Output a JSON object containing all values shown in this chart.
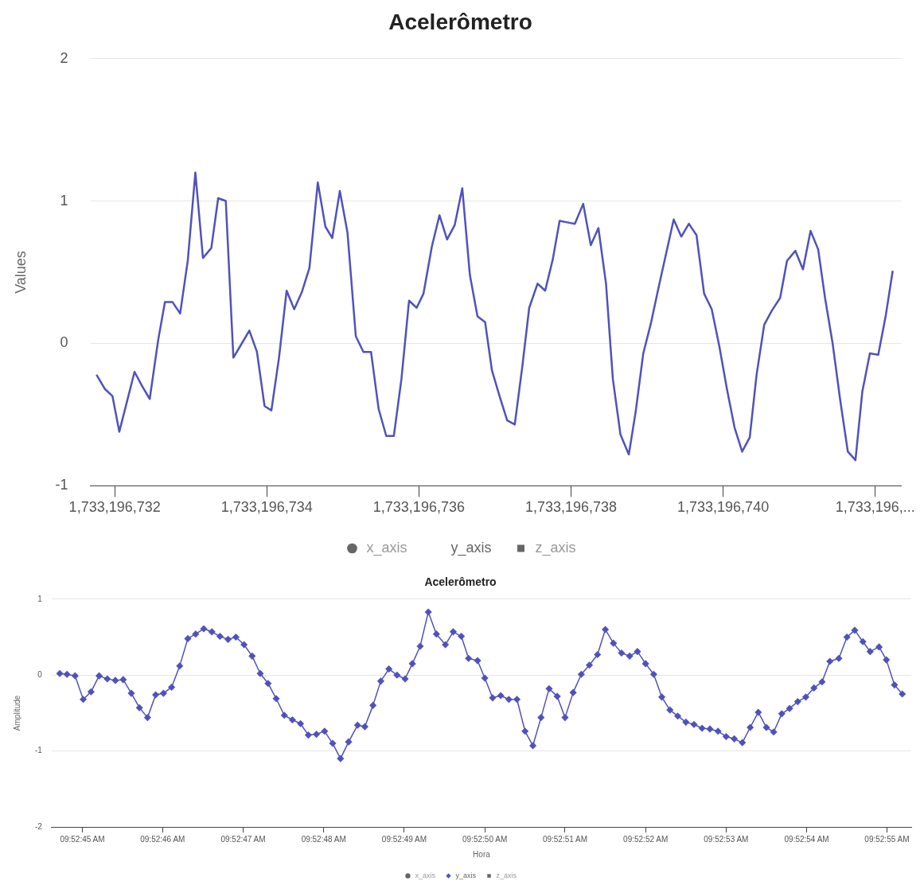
{
  "chart_data": [
    {
      "type": "line",
      "title": "Acelerômetro",
      "ylabel": "Values",
      "xlim": [
        1733196731.68,
        1733196742.34
      ],
      "xticks": [
        {
          "value": 1733196732,
          "label": "1,733,196,732"
        },
        {
          "value": 1733196734,
          "label": "1,733,196,734"
        },
        {
          "value": 1733196736,
          "label": "1,733,196,736"
        },
        {
          "value": 1733196738,
          "label": "1,733,196,738"
        },
        {
          "value": 1733196740,
          "label": "1,733,196,740"
        },
        {
          "value": 1733196742,
          "label": "1,733,196,..."
        }
      ],
      "ylim": [
        -1,
        2
      ],
      "yticks": [
        -1,
        0,
        1,
        2
      ],
      "grid": "y",
      "legend": "bottom",
      "marker": "none",
      "x": [
        1733196731.76,
        1733196731.87,
        1733196731.97,
        1733196732.06,
        1733196732.16,
        1733196732.26,
        1733196732.36,
        1733196732.46,
        1733196732.57,
        1733196732.66,
        1733196732.76,
        1733196732.86,
        1733196732.96,
        1733196733.06,
        1733196733.16,
        1733196733.27,
        1733196733.36,
        1733196733.46,
        1733196733.56,
        1733196733.66,
        1733196733.77,
        1733196733.87,
        1733196733.97,
        1733196734.06,
        1733196734.16,
        1733196734.26,
        1733196734.36,
        1733196734.46,
        1733196734.56,
        1733196734.67,
        1733196734.77,
        1733196734.86,
        1733196734.96,
        1733196735.06,
        1733196735.17,
        1733196735.27,
        1733196735.37,
        1733196735.47,
        1733196735.57,
        1733196735.67,
        1733196735.77,
        1733196735.87,
        1733196735.97,
        1733196736.06,
        1733196736.17,
        1733196736.27,
        1733196736.37,
        1733196736.47,
        1733196736.57,
        1733196736.67,
        1733196736.77,
        1733196736.87,
        1733196736.96,
        1733196737.06,
        1733196737.16,
        1733196737.26,
        1733196737.36,
        1733196737.45,
        1733196737.56,
        1733196737.66,
        1733196737.76,
        1733196737.85,
        1733196737.95,
        1733196738.05,
        1733196738.16,
        1733196738.26,
        1733196738.36,
        1733196738.46,
        1733196738.55,
        1733196738.65,
        1733196738.76,
        1733196738.85,
        1733196738.95,
        1733196739.05,
        1733196739.15,
        1733196739.25,
        1733196739.35,
        1733196739.45,
        1733196739.55,
        1733196739.65,
        1733196739.75,
        1733196739.85,
        1733196739.95,
        1733196740.05,
        1733196740.15,
        1733196740.25,
        1733196740.35,
        1733196740.44,
        1733196740.54,
        1733196740.64,
        1733196740.75,
        1733196740.84,
        1733196740.95,
        1733196741.05,
        1733196741.15,
        1733196741.25,
        1733196741.34,
        1733196741.44,
        1733196741.54,
        1733196741.64,
        1733196741.74,
        1733196741.83,
        1733196741.93,
        1733196742.04,
        1733196742.14,
        1733196742.23
      ],
      "series": [
        {
          "name": "x_axis",
          "color": "#666666",
          "marker": "circle",
          "values": [
            null,
            null,
            null,
            null,
            null,
            null,
            null,
            null,
            null,
            null,
            null,
            null,
            null,
            null,
            null,
            null,
            null,
            null,
            null,
            null,
            null,
            null,
            null,
            null,
            null,
            null,
            null,
            null,
            null,
            null,
            null,
            null,
            null,
            null,
            null,
            null,
            null,
            null,
            null,
            null,
            null,
            null,
            null,
            null,
            null,
            null,
            null,
            null,
            null,
            null,
            null,
            null,
            null,
            null,
            null,
            null,
            null,
            null,
            null,
            null,
            null,
            null,
            null,
            null,
            null,
            null,
            null,
            null,
            null,
            null,
            null,
            null,
            null,
            null,
            null,
            null,
            null,
            null,
            null,
            null,
            null,
            null,
            null,
            null,
            null,
            null,
            null,
            null,
            null,
            null,
            null,
            null,
            null,
            null,
            null,
            null,
            null,
            null,
            null,
            null,
            null,
            null,
            null,
            null,
            null,
            null
          ]
        },
        {
          "name": "y_axis",
          "color": "#5151bd",
          "values": [
            -0.22,
            -0.32,
            -0.37,
            -0.62,
            -0.41,
            -0.2,
            -0.3,
            -0.39,
            0.02,
            0.29,
            0.29,
            0.21,
            0.58,
            1.2,
            0.6,
            0.67,
            1.02,
            1.0,
            -0.1,
            -0.01,
            0.09,
            -0.06,
            -0.44,
            -0.47,
            -0.1,
            0.37,
            0.24,
            0.36,
            0.53,
            1.13,
            0.82,
            0.74,
            1.07,
            0.78,
            0.05,
            -0.06,
            -0.06,
            -0.46,
            -0.65,
            -0.65,
            -0.25,
            0.3,
            0.25,
            0.35,
            0.68,
            0.9,
            0.73,
            0.83,
            1.09,
            0.48,
            0.19,
            0.15,
            -0.19,
            -0.37,
            -0.54,
            -0.57,
            -0.16,
            0.25,
            0.42,
            0.37,
            0.59,
            0.86,
            0.85,
            0.84,
            0.98,
            0.69,
            0.81,
            0.42,
            -0.25,
            -0.64,
            -0.78,
            -0.48,
            -0.07,
            0.14,
            0.39,
            0.63,
            0.87,
            0.75,
            0.84,
            0.76,
            0.35,
            0.24,
            -0.02,
            -0.32,
            -0.59,
            -0.76,
            -0.66,
            -0.22,
            0.13,
            0.23,
            0.32,
            0.58,
            0.65,
            0.52,
            0.79,
            0.66,
            0.32,
            0.0,
            -0.4,
            -0.76,
            -0.82,
            -0.34,
            -0.07,
            -0.08,
            0.2,
            0.51
          ]
        },
        {
          "name": "z_axis",
          "color": "#666666",
          "marker": "square",
          "values": [
            null,
            null,
            null,
            null,
            null,
            null,
            null,
            null,
            null,
            null,
            null,
            null,
            null,
            null,
            null,
            null,
            null,
            null,
            null,
            null,
            null,
            null,
            null,
            null,
            null,
            null,
            null,
            null,
            null,
            null,
            null,
            null,
            null,
            null,
            null,
            null,
            null,
            null,
            null,
            null,
            null,
            null,
            null,
            null,
            null,
            null,
            null,
            null,
            null,
            null,
            null,
            null,
            null,
            null,
            null,
            null,
            null,
            null,
            null,
            null,
            null,
            null,
            null,
            null,
            null,
            null,
            null,
            null,
            null,
            null,
            null,
            null,
            null,
            null,
            null,
            null,
            null,
            null,
            null,
            null,
            null,
            null,
            null,
            null,
            null,
            null,
            null,
            null,
            null,
            null,
            null,
            null,
            null,
            null,
            null,
            null,
            null,
            null,
            null,
            null,
            null,
            null,
            null,
            null,
            null,
            null
          ]
        }
      ]
    },
    {
      "type": "line",
      "title": "Acelerômetro",
      "xlabel": "Hora",
      "ylabel": "Amplitude",
      "xlim": [
        9.879061,
        9.882028
      ],
      "xticks": [
        {
          "value": 9.879167,
          "label": "09:52:45 AM"
        },
        {
          "value": 9.879444,
          "label": "09:52:46 AM"
        },
        {
          "value": 9.879722,
          "label": "09:52:47 AM"
        },
        {
          "value": 9.88,
          "label": "09:52:48 AM"
        },
        {
          "value": 9.880278,
          "label": "09:52:49 AM"
        },
        {
          "value": 9.880556,
          "label": "09:52:50 AM"
        },
        {
          "value": 9.880833,
          "label": "09:52:51 AM"
        },
        {
          "value": 9.881111,
          "label": "09:52:52 AM"
        },
        {
          "value": 9.881389,
          "label": "09:52:53 AM"
        },
        {
          "value": 9.881667,
          "label": "09:52:54 AM"
        },
        {
          "value": 9.881944,
          "label": "09:52:55 AM"
        }
      ],
      "ylim": [
        -2,
        1
      ],
      "yticks": [
        -2,
        -1,
        0,
        1
      ],
      "grid": "y",
      "legend": "bottom",
      "marker": "diamond",
      "x": [
        9.879089,
        9.879114,
        9.879142,
        9.87917,
        9.879197,
        9.879225,
        9.879253,
        9.879281,
        9.879308,
        9.879336,
        9.879364,
        9.879392,
        9.87942,
        9.879447,
        9.879475,
        9.879503,
        9.879531,
        9.879558,
        9.879586,
        9.879614,
        9.879642,
        9.87967,
        9.879697,
        9.879725,
        9.879753,
        9.879781,
        9.879808,
        9.879836,
        9.879864,
        9.879892,
        9.87992,
        9.879947,
        9.879975,
        9.880003,
        9.880031,
        9.880058,
        9.880086,
        9.880117,
        9.880142,
        9.88017,
        9.880197,
        9.880225,
        9.880253,
        9.880281,
        9.880306,
        9.880333,
        9.880361,
        9.880389,
        9.88042,
        9.880447,
        9.880475,
        9.8805,
        9.880531,
        9.880556,
        9.880583,
        9.880611,
        9.880639,
        9.880667,
        9.880695,
        9.880722,
        9.88075,
        9.880778,
        9.880806,
        9.880833,
        9.880861,
        9.880889,
        9.880917,
        9.880945,
        9.880972,
        9.881,
        9.881028,
        9.881056,
        9.881083,
        9.881111,
        9.881139,
        9.881167,
        9.881195,
        9.881222,
        9.88125,
        9.881278,
        9.881306,
        9.881333,
        9.881361,
        9.881389,
        9.881417,
        9.881445,
        9.881472,
        9.8815,
        9.881528,
        9.881553,
        9.881581,
        9.881608,
        9.881636,
        9.881664,
        9.881692,
        9.88172,
        9.881747,
        9.881778,
        9.881806,
        9.881833,
        9.881861,
        9.881886,
        9.881917,
        9.881942,
        9.88197,
        9.881997
      ],
      "series": [
        {
          "name": "x_axis",
          "color": "#666666",
          "marker": "circle",
          "values": [
            null,
            null,
            null,
            null,
            null,
            null,
            null,
            null,
            null,
            null,
            null,
            null,
            null,
            null,
            null,
            null,
            null,
            null,
            null,
            null,
            null,
            null,
            null,
            null,
            null,
            null,
            null,
            null,
            null,
            null,
            null,
            null,
            null,
            null,
            null,
            null,
            null,
            null,
            null,
            null,
            null,
            null,
            null,
            null,
            null,
            null,
            null,
            null,
            null,
            null,
            null,
            null,
            null,
            null,
            null,
            null,
            null,
            null,
            null,
            null,
            null,
            null,
            null,
            null,
            null,
            null,
            null,
            null,
            null,
            null,
            null,
            null,
            null,
            null,
            null,
            null,
            null,
            null,
            null,
            null,
            null,
            null,
            null,
            null,
            null,
            null,
            null,
            null,
            null,
            null,
            null,
            null,
            null,
            null,
            null,
            null,
            null,
            null,
            null,
            null,
            null,
            null,
            null,
            null,
            null,
            null
          ]
        },
        {
          "name": "y_axis",
          "color": "#5151bd",
          "marker": "diamond",
          "values": [
            0.02,
            0.01,
            -0.01,
            -0.32,
            -0.22,
            -0.01,
            -0.05,
            -0.07,
            -0.06,
            -0.24,
            -0.43,
            -0.56,
            -0.26,
            -0.24,
            -0.16,
            0.12,
            0.48,
            0.54,
            0.61,
            0.57,
            0.51,
            0.47,
            0.5,
            0.4,
            0.25,
            0.02,
            -0.11,
            -0.31,
            -0.53,
            -0.59,
            -0.64,
            -0.79,
            -0.78,
            -0.74,
            -0.9,
            -1.1,
            -0.88,
            -0.66,
            -0.68,
            -0.4,
            -0.08,
            0.08,
            0.0,
            -0.05,
            0.15,
            0.38,
            0.83,
            0.54,
            0.4,
            0.57,
            0.51,
            0.22,
            0.19,
            -0.04,
            -0.3,
            -0.27,
            -0.32,
            -0.32,
            -0.74,
            -0.93,
            -0.56,
            -0.18,
            -0.28,
            -0.56,
            -0.23,
            0.01,
            0.13,
            0.27,
            0.6,
            0.42,
            0.29,
            0.25,
            0.31,
            0.15,
            0.01,
            -0.29,
            -0.46,
            -0.54,
            -0.62,
            -0.65,
            -0.7,
            -0.71,
            -0.74,
            -0.81,
            -0.84,
            -0.89,
            -0.69,
            -0.49,
            -0.69,
            -0.75,
            -0.51,
            -0.44,
            -0.35,
            -0.29,
            -0.17,
            -0.09,
            0.18,
            0.22,
            0.5,
            0.59,
            0.44,
            0.31,
            0.37,
            0.2,
            -0.13,
            -0.25
          ]
        },
        {
          "name": "z_axis",
          "color": "#666666",
          "marker": "square",
          "values": [
            null,
            null,
            null,
            null,
            null,
            null,
            null,
            null,
            null,
            null,
            null,
            null,
            null,
            null,
            null,
            null,
            null,
            null,
            null,
            null,
            null,
            null,
            null,
            null,
            null,
            null,
            null,
            null,
            null,
            null,
            null,
            null,
            null,
            null,
            null,
            null,
            null,
            null,
            null,
            null,
            null,
            null,
            null,
            null,
            null,
            null,
            null,
            null,
            null,
            null,
            null,
            null,
            null,
            null,
            null,
            null,
            null,
            null,
            null,
            null,
            null,
            null,
            null,
            null,
            null,
            null,
            null,
            null,
            null,
            null,
            null,
            null,
            null,
            null,
            null,
            null,
            null,
            null,
            null,
            null,
            null,
            null,
            null,
            null,
            null,
            null,
            null,
            null,
            null,
            null,
            null,
            null,
            null,
            null,
            null,
            null,
            null,
            null,
            null,
            null,
            null,
            null,
            null,
            null,
            null,
            null
          ]
        }
      ]
    }
  ]
}
